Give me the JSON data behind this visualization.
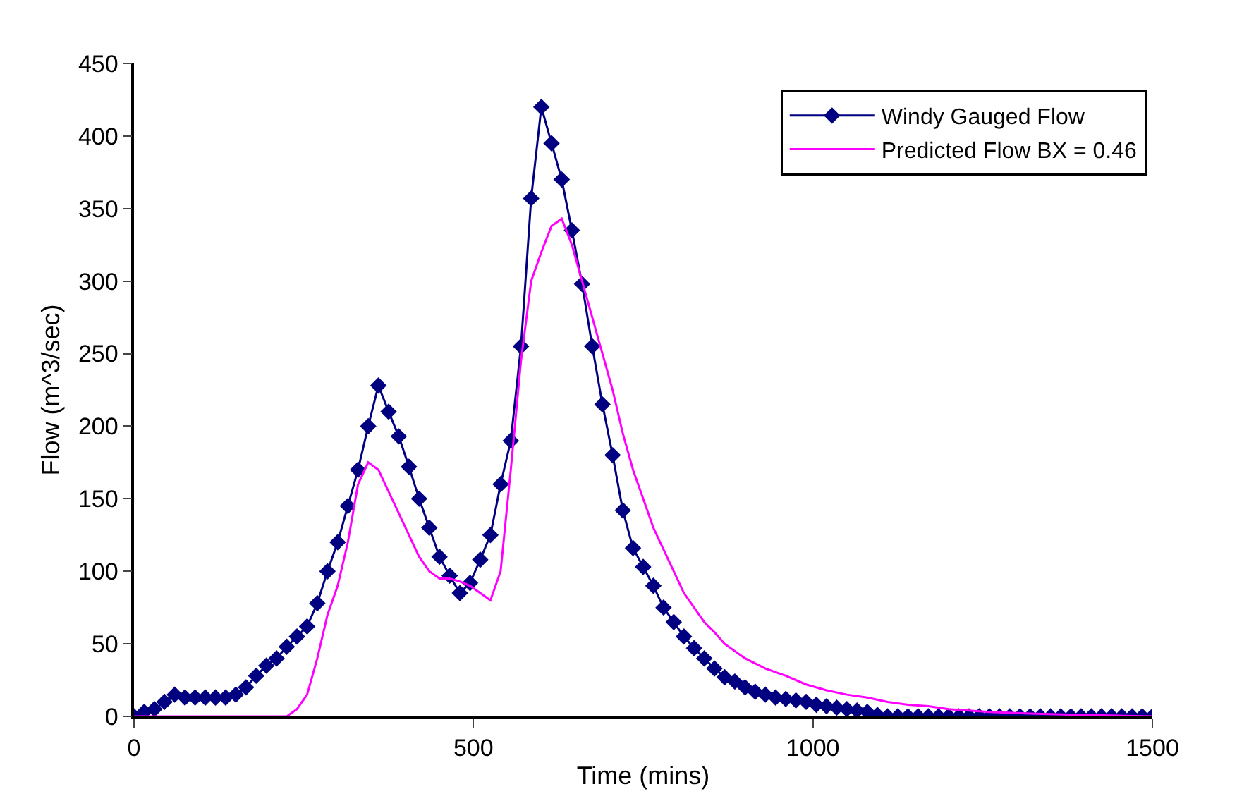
{
  "chart_data": {
    "type": "line",
    "xlabel": "Time (mins)",
    "ylabel": "Flow (m^3/sec)",
    "xlim": [
      0,
      1500
    ],
    "ylim": [
      0,
      450
    ],
    "xticks": [
      0,
      500,
      1000,
      1500
    ],
    "yticks": [
      0,
      50,
      100,
      150,
      200,
      250,
      300,
      350,
      400,
      450
    ],
    "grid": false,
    "legend": "top right",
    "series": [
      {
        "name": "Windy Gauged Flow",
        "color": "#000080",
        "marker": "diamond",
        "x": [
          0,
          15,
          30,
          45,
          60,
          75,
          90,
          105,
          120,
          135,
          150,
          165,
          180,
          195,
          210,
          225,
          240,
          255,
          270,
          285,
          300,
          315,
          330,
          345,
          360,
          375,
          390,
          405,
          420,
          435,
          450,
          465,
          480,
          495,
          510,
          525,
          540,
          555,
          570,
          585,
          600,
          615,
          630,
          645,
          660,
          675,
          690,
          705,
          720,
          735,
          750,
          765,
          780,
          795,
          810,
          825,
          840,
          855,
          870,
          885,
          900,
          915,
          930,
          945,
          960,
          975,
          990,
          1005,
          1020,
          1035,
          1050,
          1065,
          1080,
          1095,
          1110,
          1125,
          1140,
          1155,
          1170,
          1185,
          1200,
          1215,
          1230,
          1245,
          1260,
          1275,
          1290,
          1305,
          1320,
          1335,
          1350,
          1365,
          1380,
          1395,
          1410,
          1425,
          1440,
          1455,
          1470,
          1485,
          1500
        ],
        "values": [
          0,
          3,
          5,
          10,
          15,
          13,
          13,
          13,
          13,
          13,
          15,
          20,
          28,
          35,
          40,
          48,
          55,
          62,
          78,
          100,
          120,
          145,
          170,
          200,
          228,
          210,
          193,
          172,
          150,
          130,
          110,
          97,
          85,
          92,
          108,
          125,
          160,
          190,
          255,
          357,
          420,
          395,
          370,
          335,
          298,
          255,
          215,
          180,
          142,
          116,
          103,
          90,
          75,
          65,
          55,
          47,
          40,
          33,
          27,
          24,
          20,
          17,
          15,
          13,
          12,
          11,
          10,
          8,
          7,
          6,
          5,
          4,
          3,
          1,
          0,
          0,
          0,
          0,
          0,
          0,
          0,
          0,
          0,
          0,
          0,
          0,
          0,
          0,
          0,
          0,
          0,
          0,
          0,
          0,
          0,
          0,
          0,
          0,
          0,
          0,
          0
        ]
      },
      {
        "name": "Predicted Flow BX = 0.46",
        "color": "#ff00ff",
        "marker": "none",
        "x": [
          0,
          225,
          240,
          255,
          270,
          285,
          300,
          315,
          330,
          345,
          360,
          375,
          390,
          405,
          420,
          435,
          450,
          465,
          480,
          495,
          510,
          525,
          540,
          555,
          570,
          585,
          600,
          615,
          630,
          645,
          660,
          675,
          690,
          705,
          720,
          735,
          750,
          765,
          780,
          795,
          810,
          825,
          840,
          855,
          870,
          885,
          900,
          930,
          960,
          990,
          1020,
          1050,
          1080,
          1110,
          1140,
          1170,
          1200,
          1260,
          1320,
          1400,
          1500
        ],
        "values": [
          0,
          0,
          5,
          15,
          40,
          70,
          90,
          120,
          160,
          175,
          170,
          155,
          140,
          125,
          110,
          100,
          95,
          95,
          93,
          90,
          85,
          80,
          100,
          170,
          245,
          300,
          320,
          338,
          343,
          325,
          300,
          275,
          250,
          225,
          195,
          170,
          150,
          130,
          115,
          100,
          85,
          75,
          65,
          58,
          50,
          45,
          40,
          33,
          28,
          22,
          18,
          15,
          13,
          10,
          8,
          7,
          5,
          3,
          2,
          1,
          0
        ]
      }
    ]
  }
}
